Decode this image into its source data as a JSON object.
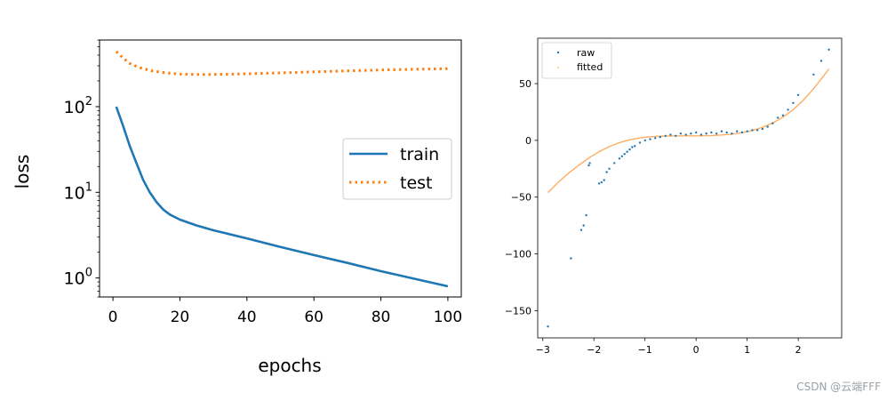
{
  "chart_data": [
    {
      "type": "line",
      "ylabel": "loss",
      "xlabel": "epochs",
      "yscale": "log",
      "xlim": [
        -4,
        104
      ],
      "ylim": [
        0.6,
        600
      ],
      "xticks": [
        0,
        20,
        40,
        60,
        80,
        100
      ],
      "yticks": [
        {
          "value": 1,
          "base": "10",
          "exp": "0"
        },
        {
          "value": 10,
          "base": "10",
          "exp": "1"
        },
        {
          "value": 100,
          "base": "10",
          "exp": "2"
        }
      ],
      "legend_position": "center-right",
      "series": [
        {
          "name": "train",
          "style": "solid",
          "color": "#1f77b4",
          "x": [
            1,
            3,
            5,
            7,
            9,
            11,
            13,
            15,
            17,
            20,
            25,
            30,
            40,
            50,
            60,
            70,
            80,
            90,
            100
          ],
          "y": [
            100,
            60,
            35,
            22,
            14,
            10,
            7.7,
            6.3,
            5.5,
            4.8,
            4.1,
            3.6,
            2.9,
            2.3,
            1.85,
            1.5,
            1.2,
            0.98,
            0.8
          ]
        },
        {
          "name": "test",
          "style": "dotted",
          "color": "#ff7f0e",
          "x": [
            1,
            3,
            5,
            8,
            12,
            16,
            20,
            25,
            30,
            40,
            50,
            60,
            70,
            80,
            90,
            100
          ],
          "y": [
            440,
            370,
            320,
            285,
            260,
            248,
            240,
            238,
            238,
            242,
            248,
            255,
            262,
            268,
            273,
            278
          ]
        }
      ]
    },
    {
      "type": "scatter",
      "xlim": [
        -3.1,
        2.85
      ],
      "ylim": [
        -174,
        90
      ],
      "xticks": [
        -3,
        -2,
        -1,
        0,
        1,
        2
      ],
      "yticks": [
        -150,
        -100,
        -50,
        0,
        50
      ],
      "legend_position": "upper-left",
      "series": [
        {
          "name": "raw",
          "kind": "scatter",
          "color": "#1f77b4",
          "x": [
            -2.9,
            -2.45,
            -2.25,
            -2.2,
            -2.15,
            -2.1,
            -2.08,
            -1.9,
            -1.85,
            -1.8,
            -1.75,
            -1.7,
            -1.6,
            -1.5,
            -1.45,
            -1.4,
            -1.35,
            -1.3,
            -1.25,
            -1.2,
            -1.1,
            -1.0,
            -0.9,
            -0.8,
            -0.7,
            -0.6,
            -0.5,
            -0.4,
            -0.3,
            -0.2,
            -0.1,
            0.0,
            0.1,
            0.2,
            0.3,
            0.4,
            0.5,
            0.6,
            0.7,
            0.8,
            0.9,
            1.0,
            1.1,
            1.2,
            1.3,
            1.4,
            1.5,
            1.6,
            1.7,
            1.8,
            1.9,
            2.0,
            2.3,
            2.45,
            2.6
          ],
          "y": [
            -164,
            -104,
            -79,
            -75,
            -66,
            -22,
            -20,
            -38,
            -37,
            -35,
            -28,
            -25,
            -20,
            -16,
            -14,
            -12,
            -10,
            -8,
            -6,
            -5,
            -2,
            0,
            1,
            2,
            3,
            4,
            5,
            4,
            6,
            5,
            6,
            7,
            5,
            6,
            7,
            6,
            8,
            7,
            6,
            8,
            7,
            8,
            9,
            9,
            10,
            12,
            15,
            20,
            22,
            27,
            33,
            40,
            58,
            70,
            80
          ]
        },
        {
          "name": "fitted",
          "kind": "line",
          "color": "#ff7f0e",
          "x": [
            -2.9,
            -2.7,
            -2.5,
            -2.3,
            -2.1,
            -1.9,
            -1.7,
            -1.5,
            -1.3,
            -1.1,
            -0.9,
            -0.7,
            -0.5,
            -0.3,
            -0.1,
            0.1,
            0.3,
            0.5,
            0.7,
            0.9,
            1.1,
            1.3,
            1.5,
            1.7,
            1.9,
            2.1,
            2.3,
            2.5,
            2.6
          ],
          "y": [
            -46,
            -37,
            -29,
            -22,
            -15.5,
            -10,
            -5.5,
            -2,
            0.5,
            2.2,
            3.2,
            3.7,
            3.9,
            4.0,
            4.0,
            4.1,
            4.3,
            4.8,
            5.5,
            6.8,
            8.7,
            11.5,
            15.3,
            20.5,
            27,
            35.5,
            45.5,
            57,
            63
          ]
        }
      ]
    }
  ],
  "watermark": "CSDN @云端FFF"
}
